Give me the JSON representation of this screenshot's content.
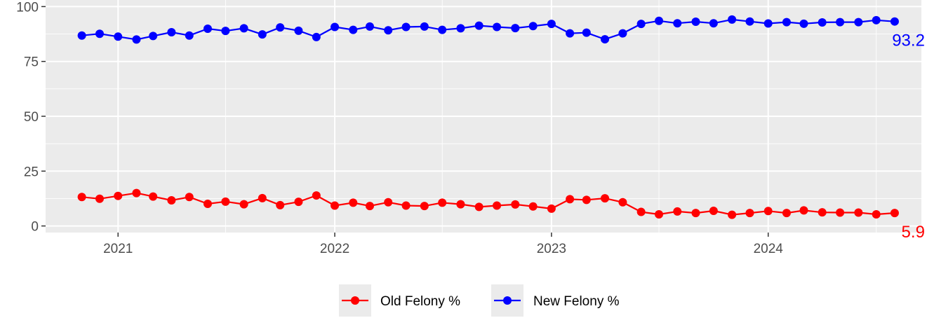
{
  "chart_data": {
    "type": "line",
    "title": "",
    "xlabel": "",
    "ylabel": "",
    "x": [
      "2020-11-01",
      "2020-12-01",
      "2021-01-01",
      "2021-02-01",
      "2021-03-01",
      "2021-04-01",
      "2021-05-01",
      "2021-06-01",
      "2021-07-01",
      "2021-08-01",
      "2021-09-01",
      "2021-10-01",
      "2021-11-01",
      "2021-12-01",
      "2022-01-01",
      "2022-02-01",
      "2022-03-01",
      "2022-04-01",
      "2022-05-01",
      "2022-06-01",
      "2022-07-01",
      "2022-08-01",
      "2022-09-01",
      "2022-10-01",
      "2022-11-01",
      "2022-12-01",
      "2023-01-01",
      "2023-02-01",
      "2023-03-01",
      "2023-04-01",
      "2023-05-01",
      "2023-06-01",
      "2023-07-01",
      "2023-08-01",
      "2023-09-01",
      "2023-10-01",
      "2023-11-01",
      "2023-12-01",
      "2024-01-01",
      "2024-02-01",
      "2024-03-01",
      "2024-04-01",
      "2024-05-01",
      "2024-06-01",
      "2024-07-01",
      "2024-08-01"
    ],
    "series": [
      {
        "name": "Old Felony %",
        "color": "#ff0000",
        "values": [
          13.2,
          12.4,
          13.7,
          15.0,
          13.4,
          11.7,
          13.2,
          10.1,
          11.1,
          9.9,
          12.7,
          9.5,
          11.0,
          13.9,
          9.3,
          10.6,
          9.1,
          10.8,
          9.3,
          9.1,
          10.6,
          9.9,
          8.7,
          9.3,
          9.8,
          8.9,
          7.9,
          12.2,
          11.9,
          12.6,
          10.8,
          6.4,
          5.3,
          6.6,
          5.9,
          6.9,
          5.1,
          5.9,
          6.8,
          5.9,
          7.1,
          6.2,
          6.1,
          6.1,
          5.3,
          5.9
        ],
        "end_label": "5.9"
      },
      {
        "name": "New Felony %",
        "color": "#0000ff",
        "values": [
          86.8,
          87.6,
          86.3,
          85.0,
          86.6,
          88.3,
          86.8,
          89.9,
          88.9,
          90.1,
          87.3,
          90.5,
          89.0,
          86.1,
          90.7,
          89.4,
          90.9,
          89.2,
          90.7,
          90.9,
          89.4,
          90.1,
          91.3,
          90.7,
          90.2,
          91.1,
          92.1,
          87.8,
          88.1,
          85.1,
          87.8,
          92.1,
          93.5,
          92.4,
          93.1,
          92.4,
          94.1,
          93.2,
          92.3,
          92.9,
          92.2,
          92.8,
          92.9,
          92.9,
          93.8,
          93.2
        ],
        "end_label": "93.2"
      }
    ],
    "x_ticks": [
      "2021",
      "2022",
      "2023",
      "2024"
    ],
    "y_ticks": [
      "0",
      "25",
      "50",
      "75",
      "100"
    ],
    "xlim": [
      "2020-09-01",
      "2024-09-15"
    ],
    "ylim": [
      -3,
      103
    ],
    "grid": true,
    "legend_position": "bottom",
    "legend": [
      "Old Felony %",
      "New Felony %"
    ]
  }
}
